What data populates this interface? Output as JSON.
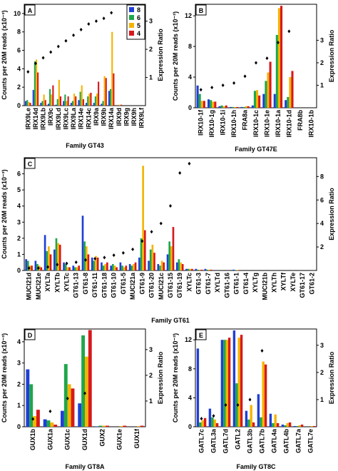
{
  "chart_data": [
    {
      "type": "bar",
      "panel": "A",
      "xlabel": "Family GT43",
      "ylabel": "Counts per 20M reads (x10⁻³)",
      "y2label": "Expression Ratio",
      "legend": "upper right",
      "categories": [
        "IRX9Le",
        "IRX14d",
        "IRX9Lb",
        "IRX9c",
        "IRX9Ld",
        "IRX9Lc",
        "IRX9La",
        "IRX14e",
        "IRX14c",
        "IRX9a",
        "IRX9b",
        "IRX14a",
        "IRX9d",
        "IRX9g",
        "IRX9h",
        "IRX9Lf"
      ],
      "label_colors": [
        "#000",
        "#000",
        "#000",
        "#000",
        "#000",
        "#000",
        "#000",
        "#d00",
        "#000",
        "#d00",
        "#d00",
        "#d00",
        "#000",
        "#000",
        "#000",
        "#000"
      ],
      "ylim": [
        0,
        11
      ],
      "yticks": [
        0,
        2,
        4,
        6,
        8,
        10
      ],
      "y2lim": [
        0,
        3.6
      ],
      "y2ticks": [
        1,
        2,
        3
      ],
      "series": [
        {
          "name": "8",
          "color": "#1f3fd6",
          "values": [
            0.5,
            1.7,
            0.3,
            0.2,
            0.1,
            0.5,
            0.3,
            0.6,
            0.3,
            0.3,
            0.2,
            1.6,
            0,
            0,
            0,
            0
          ]
        },
        {
          "name": "6",
          "color": "#1fa64a",
          "values": [
            0.6,
            4.8,
            0.5,
            1.8,
            0.7,
            1.2,
            0.5,
            1.5,
            1.0,
            1.0,
            0.5,
            1.8,
            0,
            0,
            0,
            0
          ]
        },
        {
          "name": "5",
          "color": "#f4b400",
          "values": [
            0.4,
            5.0,
            1.2,
            1.2,
            2.8,
            0.5,
            1.3,
            2.2,
            1.3,
            1.3,
            3.2,
            8.0,
            0.1,
            0,
            0,
            0
          ]
        },
        {
          "name": "4",
          "color": "#d7191c",
          "values": [
            0.3,
            3.6,
            0.6,
            2.2,
            1.0,
            1.0,
            1.0,
            0.7,
            1.4,
            2.6,
            3.0,
            3.5,
            0.1,
            0,
            0,
            0
          ]
        },
        {
          "axis": "y2",
          "color": "#000",
          "values": [
            1.2,
            1.5,
            1.7,
            1.9,
            2.1,
            2.3,
            2.5,
            2.7,
            2.9,
            3.0,
            3.1,
            3.3,
            null,
            null,
            null,
            null
          ]
        }
      ]
    },
    {
      "type": "bar",
      "panel": "B",
      "xlabel": "Family GT47E",
      "ylabel": "Counts per 20M reads (x10⁻³)",
      "y2label": "Expression Ratio",
      "categories": [
        "IRX10-1f",
        "IRX10-1g",
        "IRX10-1i",
        "IRX10-1h",
        "FRA8a",
        "IRX10-1c",
        "IRX10-1e",
        "IRX10-1a",
        "IRX10-1d",
        "FRA8b",
        "IRX10-1b"
      ],
      "label_colors": [
        "#000",
        "#000",
        "#000",
        "#000",
        "#000",
        "#d00",
        "#000",
        "#d00",
        "#d00",
        "#000",
        "#000"
      ],
      "ylim": [
        0,
        13.5
      ],
      "yticks": [
        0,
        4,
        8,
        12
      ],
      "y2lim": [
        0,
        4.6
      ],
      "y2ticks": [
        1,
        2,
        3
      ],
      "series": [
        {
          "color": "#1f3fd6",
          "values": [
            2.9,
            1.1,
            0.2,
            0.1,
            0.1,
            0.3,
            1.8,
            1.8,
            1.0,
            0,
            0
          ]
        },
        {
          "color": "#1fa64a",
          "values": [
            1.8,
            1.0,
            0.3,
            0.1,
            0.1,
            2.2,
            3.5,
            9.5,
            1.4,
            0,
            0
          ]
        },
        {
          "color": "#f4b400",
          "values": [
            0.9,
            0.8,
            0.2,
            0.1,
            0.2,
            2.3,
            4.6,
            13.0,
            4.0,
            0,
            0
          ]
        },
        {
          "color": "#d7191c",
          "values": [
            0.9,
            0.8,
            0.3,
            0.1,
            0.2,
            1.6,
            6.0,
            13.3,
            4.8,
            0,
            0
          ]
        },
        {
          "axis": "y2",
          "color": "#000",
          "values": [
            0.8,
            0.9,
            1.0,
            1.1,
            1.4,
            2.0,
            2.2,
            2.9,
            3.4,
            null,
            null
          ]
        }
      ]
    },
    {
      "type": "bar",
      "panel": "C",
      "xlabel": "Family GT61",
      "ylabel": "Counts per 20M reads (x10⁻³)",
      "y2label": "Expression Ratio",
      "categories": [
        "MUCI21d",
        "MUCI21e",
        "XYLTa",
        "XYLTb",
        "XYLTc",
        "GT61-13",
        "GT61-8",
        "GT61-11",
        "GT61-18",
        "GT61-10",
        "GT61-5",
        "MUCI21a",
        "GT61-9",
        "GT61-20",
        "MUCI21c",
        "GT61-15",
        "GT61-19",
        "XYLTc",
        "GT61-3",
        "GT61-7",
        "XYLTd",
        "GT61-16",
        "GT61-1",
        "GT61-4",
        "XYLTg",
        "MUCI21b",
        "XYLTh",
        "XYLTf",
        "XYLTe",
        "GT61-17",
        "GT61-2"
      ],
      "label_colors": [
        "#1f3fd6",
        "#1f3fd6",
        "#000",
        "#1f3fd6",
        "#1f3fd6",
        "#000",
        "#000",
        "#000",
        "#000",
        "#000",
        "#1f3fd6",
        "#d00",
        "#000",
        "#000",
        "#d00",
        "#000",
        "#000",
        "#000",
        "#000",
        "#000",
        "#000",
        "#000",
        "#000",
        "#000",
        "#000",
        "#000",
        "#000",
        "#000",
        "#000",
        "#000",
        "#000"
      ],
      "ylim": [
        0,
        7
      ],
      "yticks": [
        0,
        1,
        2,
        3,
        4,
        5,
        6
      ],
      "y2lim": [
        0,
        9.6
      ],
      "y2ticks": [
        2,
        4,
        6,
        8
      ],
      "series": [
        {
          "color": "#1f3fd6",
          "values": [
            0.7,
            0.6,
            2.2,
            1.3,
            0.5,
            0.3,
            3.4,
            0.8,
            0.5,
            0.3,
            0.5,
            0.4,
            0.8,
            0.6,
            0.4,
            1.0,
            0.5,
            0.1,
            0.1,
            0.1,
            0,
            0,
            0.05,
            0,
            0,
            0,
            0,
            0,
            0,
            0,
            0
          ]
        },
        {
          "color": "#1fa64a",
          "values": [
            0.6,
            0.4,
            1.2,
            2.0,
            0.4,
            0.2,
            1.8,
            0.6,
            0.3,
            0.4,
            0.3,
            0.3,
            2.0,
            1.3,
            0.3,
            1.8,
            0.7,
            0.1,
            0.05,
            0.05,
            0,
            0,
            0.03,
            0,
            0,
            0,
            0,
            0,
            0,
            0,
            0
          ]
        },
        {
          "color": "#f4b400",
          "values": [
            0.3,
            0.3,
            1.5,
            1.7,
            0.2,
            0.2,
            1.5,
            0.9,
            0.4,
            0.3,
            0.2,
            0.4,
            6.5,
            1.6,
            0.6,
            1.5,
            0.5,
            0.1,
            0.05,
            0.05,
            0,
            0,
            0.03,
            0,
            0,
            0,
            0,
            0,
            0,
            0,
            0
          ]
        },
        {
          "color": "#d7191c",
          "values": [
            0.3,
            0.2,
            1.0,
            1.6,
            0.2,
            0.3,
            1.0,
            0.8,
            0.5,
            0.2,
            0.3,
            0.5,
            2.5,
            1.1,
            0.5,
            2.7,
            0.4,
            0.1,
            0.05,
            0.05,
            0,
            0,
            0.03,
            0,
            0,
            0,
            0,
            0,
            0,
            0,
            0
          ]
        },
        {
          "axis": "y2",
          "color": "#000",
          "values": [
            0.2,
            0.2,
            0.3,
            0.5,
            0.6,
            0.7,
            0.9,
            1.0,
            1.1,
            1.3,
            1.5,
            1.8,
            2.5,
            3.3,
            4.0,
            5.5,
            8.3,
            9.1,
            null,
            null,
            null,
            null,
            null,
            null,
            null,
            null,
            null,
            null,
            null,
            null,
            null
          ]
        }
      ]
    },
    {
      "type": "bar",
      "panel": "D",
      "xlabel": "Family GT8A",
      "ylabel": "Counts per 20M reads (x10⁻³)",
      "y2label": "Expression Ratio",
      "categories": [
        "GUX1b",
        "GUX1a",
        "GUX1c",
        "GUX1d",
        "GUX2",
        "GUX1e",
        "GUX1f"
      ],
      "label_colors": [
        "#1f3fd6",
        "#1f3fd6",
        "#000",
        "#000",
        "#000",
        "#000",
        "#000"
      ],
      "ylim": [
        0,
        4.6
      ],
      "yticks": [
        0,
        1,
        2,
        3,
        4
      ],
      "y2lim": [
        0,
        3.8
      ],
      "y2ticks": [
        1,
        2,
        3
      ],
      "series": [
        {
          "color": "#1f3fd6",
          "values": [
            2.7,
            0.35,
            0.75,
            1.1,
            0.02,
            0,
            0
          ]
        },
        {
          "color": "#1fa64a",
          "values": [
            2.0,
            0.3,
            2.95,
            4.3,
            0.05,
            0,
            0
          ]
        },
        {
          "color": "#f4b400",
          "values": [
            0.5,
            0.2,
            2.0,
            3.3,
            0.05,
            0.03,
            0.03
          ]
        },
        {
          "color": "#d7191c",
          "values": [
            0.8,
            0.1,
            1.8,
            4.55,
            0.05,
            0.05,
            0.05
          ]
        },
        {
          "axis": "y2",
          "color": "#000",
          "values": [
            0.3,
            0.6,
            1.1,
            1.3,
            null,
            null,
            null
          ]
        }
      ]
    },
    {
      "type": "bar",
      "panel": "E",
      "xlabel": "Family GT8C",
      "ylabel": "Counts per 20M reads (x10⁻³)",
      "y2label": "Expression Ratio",
      "categories": [
        "GATL7c",
        "GATL3a",
        "GATL7d",
        "GATL2",
        "GATL3b",
        "GATL7b",
        "GATL4a",
        "GATL4b",
        "GATL7a",
        "GATL7e"
      ],
      "label_colors": [
        "#000",
        "#1f3fd6",
        "#000",
        "#1f3fd6",
        "#1f3fd6",
        "#000",
        "#000",
        "#000",
        "#000",
        "#000"
      ],
      "ylim": [
        0,
        13.5
      ],
      "yticks": [
        0,
        4,
        8,
        12
      ],
      "y2lim": [
        0,
        3.6
      ],
      "y2ticks": [
        1,
        2,
        3
      ],
      "series": [
        {
          "color": "#1f3fd6",
          "values": [
            10.8,
            2.5,
            12,
            13.3,
            2.2,
            4.5,
            1.8,
            0.3,
            0.1,
            0
          ]
        },
        {
          "color": "#1fa64a",
          "values": [
            0.6,
            1.3,
            12,
            6.0,
            1.0,
            1.3,
            0.5,
            0.2,
            0.1,
            0
          ]
        },
        {
          "color": "#f4b400",
          "values": [
            0.9,
            1.0,
            12,
            12.3,
            3.0,
            9.0,
            1.7,
            0.5,
            0.2,
            0.1
          ]
        },
        {
          "color": "#d7191c",
          "values": [
            1.2,
            0.5,
            12.3,
            12.7,
            0.6,
            8.6,
            0.5,
            0.6,
            0.3,
            0.1
          ]
        },
        {
          "axis": "y2",
          "color": "#000",
          "values": [
            0.3,
            0.4,
            0.8,
            0.8,
            1.0,
            2.8,
            null,
            null,
            null,
            null
          ]
        }
      ]
    }
  ]
}
